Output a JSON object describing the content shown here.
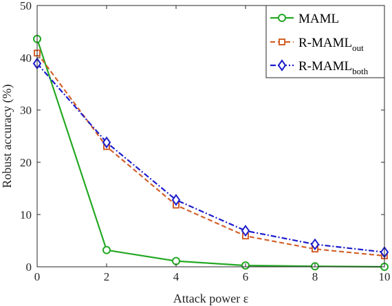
{
  "chart_data": {
    "type": "line",
    "xlabel": "Attack power ε",
    "ylabel": "Robust accuracy (%)",
    "x": [
      0,
      2,
      4,
      6,
      8,
      10
    ],
    "xlim": [
      0,
      10
    ],
    "ylim": [
      0,
      50
    ],
    "xticks": [
      "0",
      "2",
      "4",
      "6",
      "8",
      "10"
    ],
    "yticks": [
      "0",
      "10",
      "20",
      "30",
      "40",
      "50"
    ],
    "grid": false,
    "legend_position": "top-right",
    "series": [
      {
        "name": "MAML",
        "legend_main": "MAML",
        "legend_sub": "",
        "values": [
          43.6,
          3.2,
          1.1,
          0.25,
          0.1,
          0.0
        ],
        "color": "#22a822",
        "line_style": "solid",
        "marker": "circle"
      },
      {
        "name": "R-MAML out",
        "legend_main": "R-MAML",
        "legend_sub": "out",
        "values": [
          40.9,
          23.0,
          11.8,
          5.9,
          3.4,
          2.1
        ],
        "color": "#d2602a",
        "line_style": "dashed",
        "marker": "square"
      },
      {
        "name": "R-MAML both",
        "legend_main": "R-MAML",
        "legend_sub": "both",
        "values": [
          38.9,
          23.8,
          12.8,
          6.9,
          4.3,
          2.8
        ],
        "color": "#1c1ccc",
        "line_style": "dashdot",
        "marker": "diamond"
      }
    ]
  }
}
